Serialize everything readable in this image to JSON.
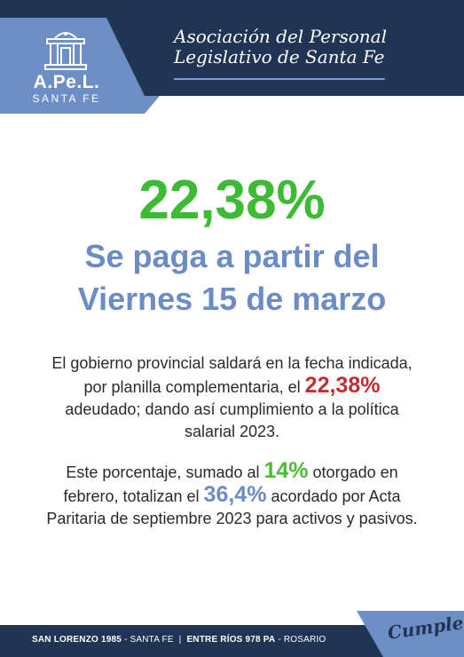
{
  "header": {
    "logo": {
      "acronym": "A.Pe.L.",
      "location": "SANTA FE",
      "icon": "building-columns-icon"
    },
    "org_name_line1": "Asociación del Personal",
    "org_name_line2": "Legislativo de Santa Fe"
  },
  "main": {
    "big_percent": "22,38%",
    "headline_line1": "Se paga a partir del",
    "headline_line2": "Viernes 15 de marzo",
    "paragraph1": {
      "part1": "El gobierno provincial saldará en la fecha indicada,",
      "part2": "por planilla complementaria, el ",
      "highlight": "22,38%",
      "part3": "adeudado; dando así cumplimiento a la política",
      "part4": "salarial 2023."
    },
    "paragraph2": {
      "part1": "Este porcentaje, sumado al ",
      "highlight1": "14%",
      "part2": " otorgado en",
      "part3": "febrero, totalizan el ",
      "highlight2": "36,4%",
      "part4": " acordado por Acta",
      "part5": "Paritaria de septiembre 2023 para activos y pasivos."
    }
  },
  "footer": {
    "address1_street": "SAN LORENZO 1985",
    "address1_city": " - SANTA FE",
    "separator": "  |  ",
    "address2_street": "ENTRE RÍOS 978 PA",
    "address2_city": " - ROSARIO",
    "slogan": "Cumple"
  },
  "colors": {
    "navy": "#1f3553",
    "accent_blue": "#6e8ec6",
    "green": "#3dbb35",
    "red": "#c22d32"
  }
}
